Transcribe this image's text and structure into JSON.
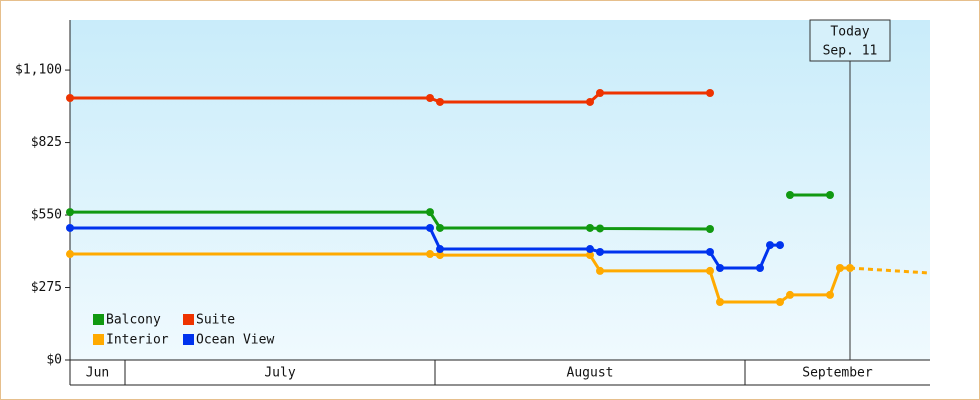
{
  "chart_data": {
    "type": "line",
    "ylim": [
      0,
      1290
    ],
    "yticks": [
      {
        "value": 0,
        "label": "$0"
      },
      {
        "value": 275,
        "label": "$275"
      },
      {
        "value": 550,
        "label": "$550"
      },
      {
        "value": 825,
        "label": "$825"
      },
      {
        "value": 1100,
        "label": "$1,100"
      }
    ],
    "xlim": [
      -5.5,
      80.5
    ],
    "month_bands": [
      {
        "label": "Jun",
        "start": -5.5,
        "end": 0
      },
      {
        "label": "July",
        "start": 0,
        "end": 31
      },
      {
        "label": "August",
        "start": 31,
        "end": 62
      },
      {
        "label": "September",
        "start": 62,
        "end": 80.5
      }
    ],
    "today": {
      "label_lines": [
        "Today",
        "Sep. 11"
      ],
      "x": 72.5
    },
    "legend": "lower left",
    "series": [
      {
        "name": "Balcony",
        "color": "#119911",
        "x": [
          -5.5,
          30.5,
          31.5,
          46.5,
          47.5,
          58.5,
          62,
          66.5,
          70.5
        ],
        "values": [
          561,
          561,
          501,
          501,
          499,
          497,
          null,
          626,
          626
        ]
      },
      {
        "name": "Suite",
        "color": "#ee3300",
        "x": [
          -5.5,
          30.5,
          31.5,
          46.5,
          47.5,
          58.5
        ],
        "values": [
          994,
          994,
          979,
          979,
          1013,
          1013
        ]
      },
      {
        "name": "Interior",
        "color": "#ffaa00",
        "x": [
          -5.5,
          30.5,
          31.5,
          46.5,
          47.5,
          58.5,
          59.5,
          65.5,
          66.5,
          70.5,
          71.5,
          72.5
        ],
        "values": [
          402,
          402,
          398,
          398,
          338,
          338,
          220,
          220,
          247,
          247,
          349,
          349
        ],
        "forecast": {
          "x": [
            72.5,
            80.5
          ],
          "values": [
            349,
            330
          ]
        }
      },
      {
        "name": "Ocean View",
        "color": "#0033ee",
        "x": [
          -5.5,
          30.5,
          31.5,
          46.5,
          47.5,
          58.5,
          59.5,
          63.5,
          64.5,
          65.5
        ],
        "values": [
          501,
          501,
          421,
          421,
          410,
          410,
          349,
          349,
          436,
          436
        ]
      }
    ]
  }
}
